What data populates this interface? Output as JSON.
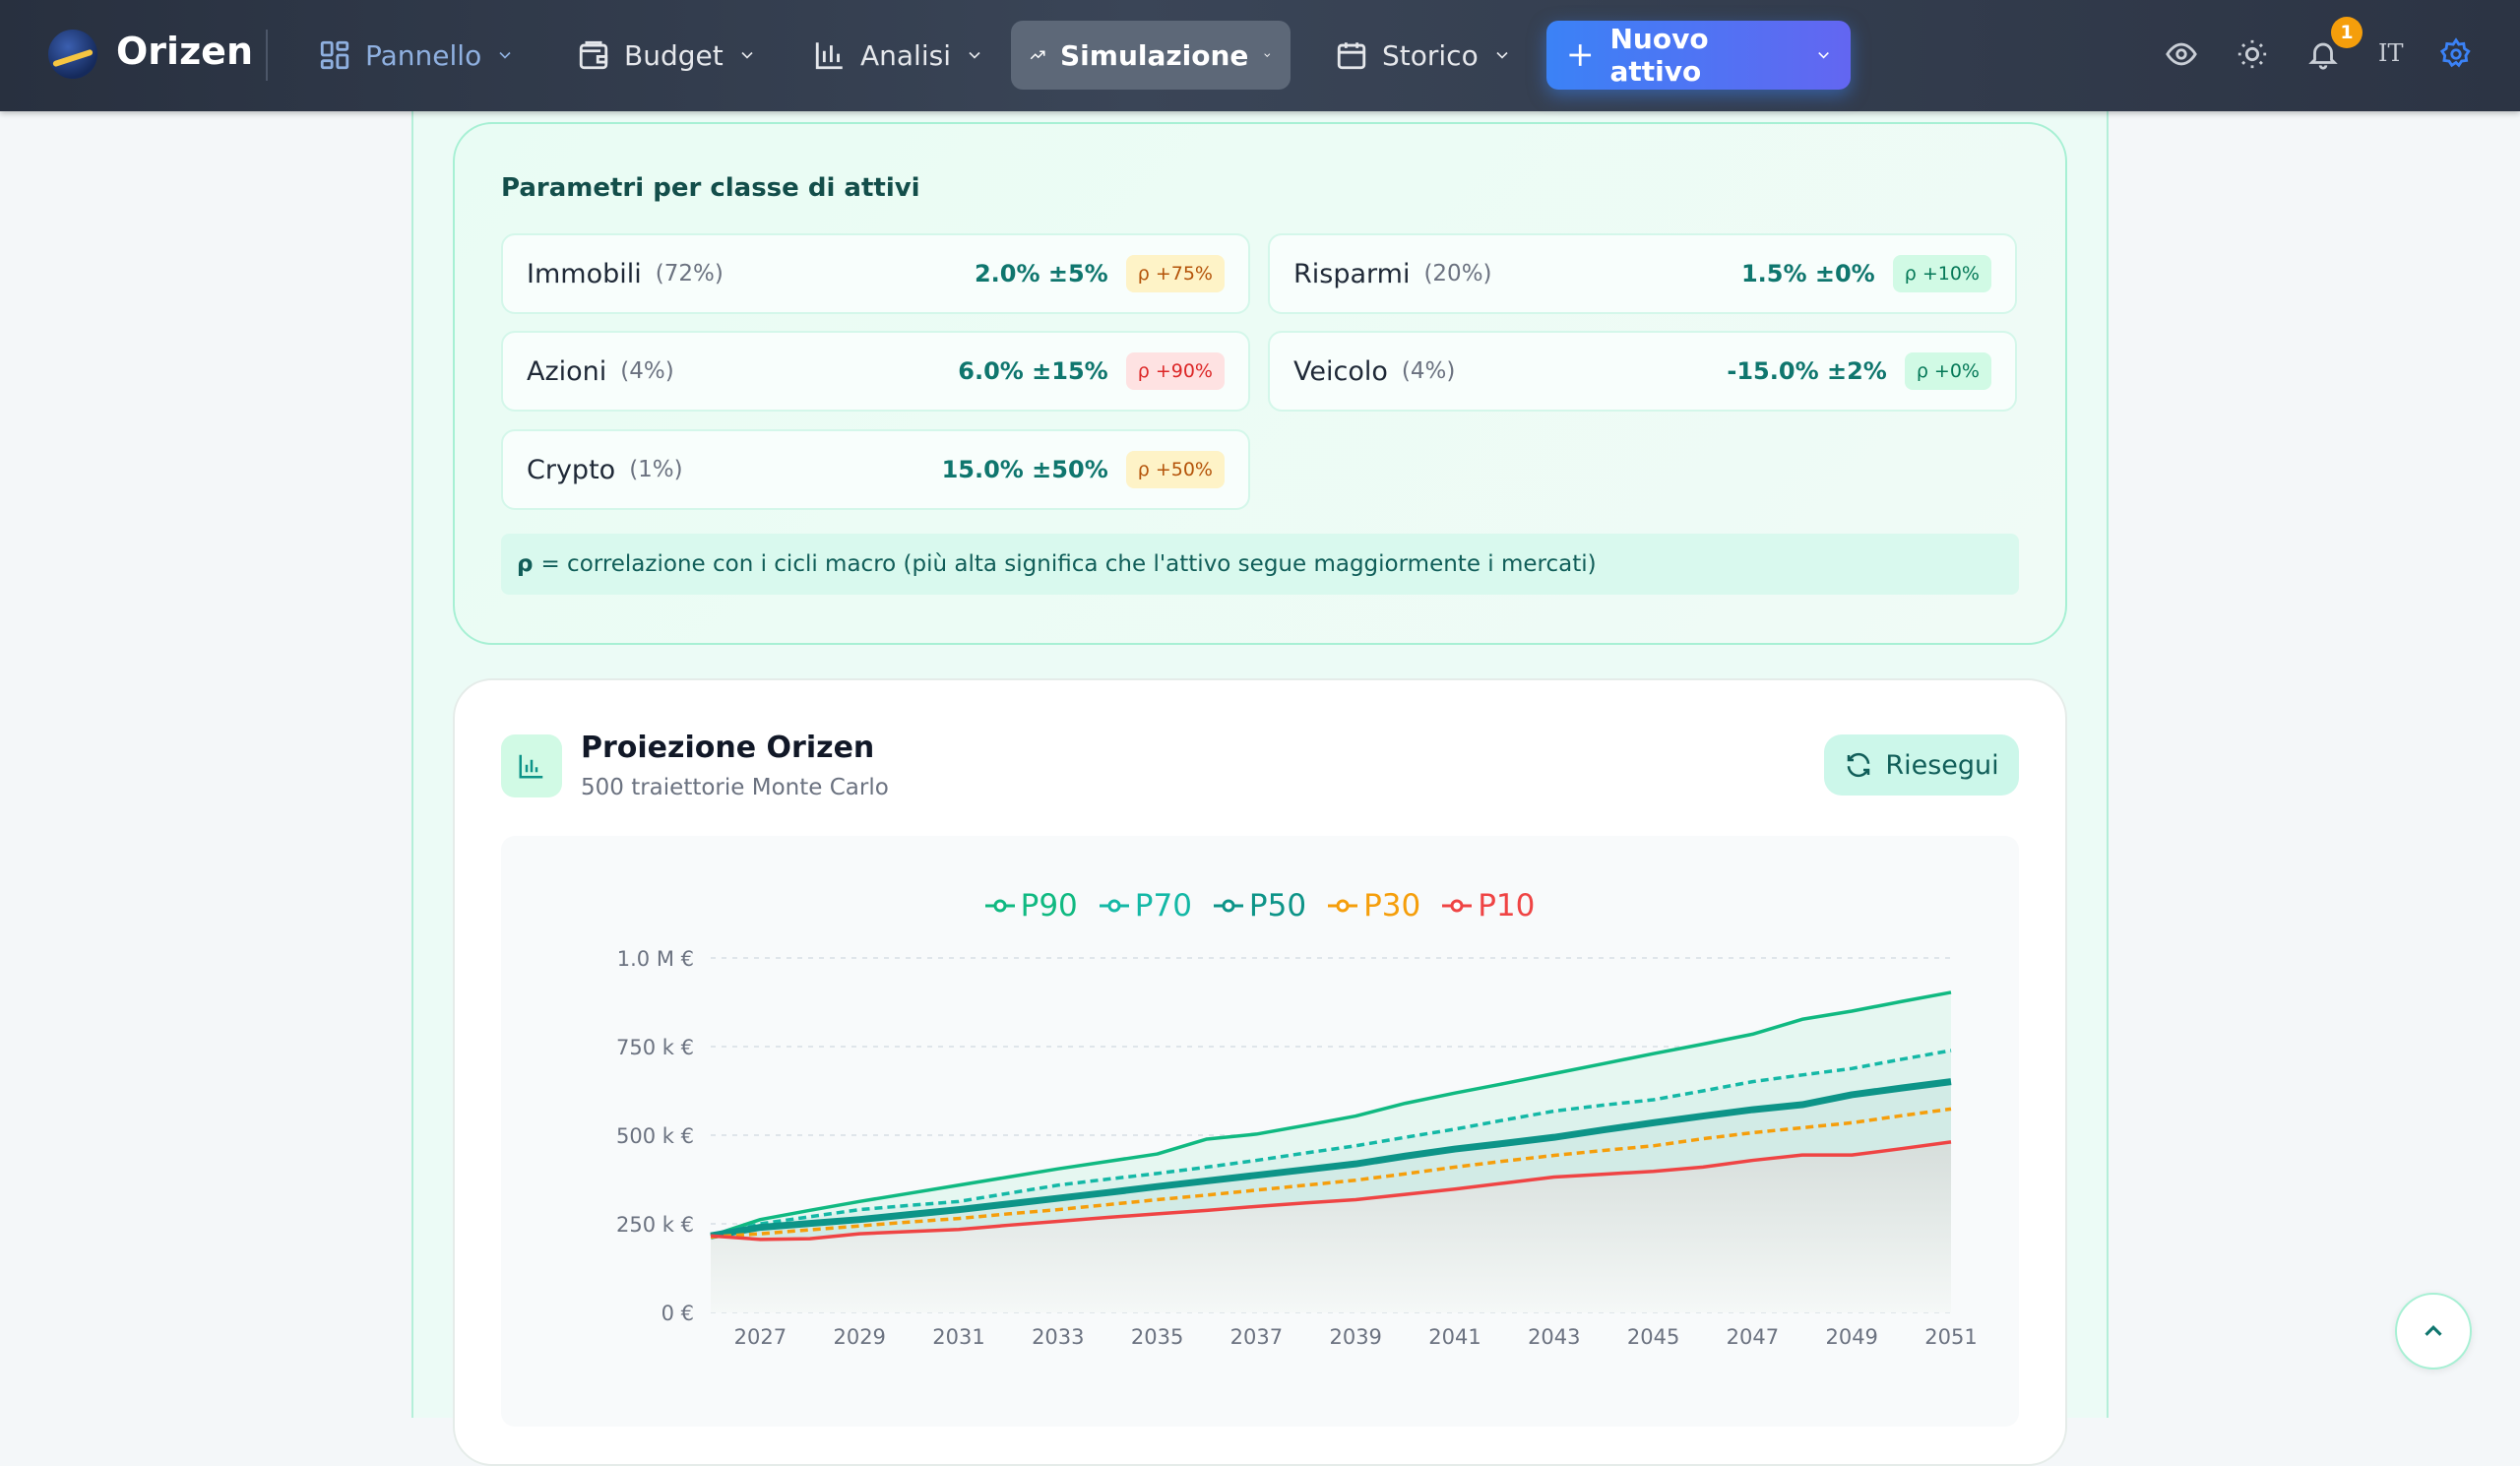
{
  "nav": {
    "brand": "Orizen",
    "items": [
      {
        "label": "Pannello",
        "icon": "grid-icon"
      },
      {
        "label": "Budget",
        "icon": "wallet-icon"
      },
      {
        "label": "Analisi",
        "icon": "bar-chart-icon"
      },
      {
        "label": "Simulazione",
        "icon": "trending-up-icon",
        "active": true
      },
      {
        "label": "Storico",
        "icon": "calendar-icon"
      }
    ],
    "new_asset": "Nuovo attivo",
    "notifications": "1",
    "language": "IT"
  },
  "params": {
    "title": "Parametri per classe di attivi",
    "items": [
      {
        "name": "Immobili",
        "share": "(72%)",
        "value": "2.0% ±5%",
        "rho": "ρ +75%",
        "tone": "amber"
      },
      {
        "name": "Risparmi",
        "share": "(20%)",
        "value": "1.5% ±0%",
        "rho": "ρ +10%",
        "tone": "green"
      },
      {
        "name": "Azioni",
        "share": "(4%)",
        "value": "6.0% ±15%",
        "rho": "ρ +90%",
        "tone": "red"
      },
      {
        "name": "Veicolo",
        "share": "(4%)",
        "value": "-15.0% ±2%",
        "rho": "ρ +0%",
        "tone": "green"
      },
      {
        "name": "Crypto",
        "share": "(1%)",
        "value": "15.0% ±50%",
        "rho": "ρ +50%",
        "tone": "amber"
      }
    ],
    "note_symbol": "ρ",
    "note": "= correlazione con i cicli macro (più alta significa che l'attivo segue maggiormente i mercati)"
  },
  "projection": {
    "title": "Proiezione Orizen",
    "subtitle": "500 traiettorie Monte Carlo",
    "rerun": "Riesegui"
  },
  "chart_data": {
    "type": "line",
    "x": [
      2026,
      2027,
      2028,
      2029,
      2030,
      2031,
      2032,
      2033,
      2034,
      2035,
      2036,
      2037,
      2038,
      2039,
      2040,
      2041,
      2042,
      2043,
      2044,
      2045,
      2046,
      2047,
      2048,
      2049,
      2050,
      2051
    ],
    "xticks": [
      "2027",
      "2029",
      "2031",
      "2033",
      "2035",
      "2037",
      "2039",
      "2041",
      "2043",
      "2045",
      "2047",
      "2049",
      "2051"
    ],
    "yticks": [
      {
        "v": 0,
        "label": "0 €"
      },
      {
        "v": 250000,
        "label": "250 k €"
      },
      {
        "v": 500000,
        "label": "500 k €"
      },
      {
        "v": 750000,
        "label": "750 k €"
      },
      {
        "v": 1000000,
        "label": "1.0 M €"
      }
    ],
    "ylim": [
      0,
      1000000
    ],
    "grid": true,
    "legend": "top-center",
    "series": [
      {
        "name": "P90",
        "color": "#10b981",
        "style": "solid",
        "values": [
          216000,
          262000,
          288000,
          313000,
          336000,
          359000,
          382000,
          405000,
          426000,
          447000,
          489000,
          503000,
          528000,
          554000,
          590000,
          619000,
          646000,
          674000,
          702000,
          730000,
          757000,
          785000,
          827000,
          850000,
          877000,
          903000
        ]
      },
      {
        "name": "P70",
        "color": "#14b8a6",
        "style": "dashed",
        "values": [
          216000,
          250000,
          270000,
          290000,
          302000,
          313000,
          336000,
          359000,
          376000,
          392000,
          410000,
          429000,
          450000,
          470000,
          494000,
          517000,
          543000,
          568000,
          585000,
          600000,
          625000,
          651000,
          670000,
          688000,
          714000,
          739000
        ]
      },
      {
        "name": "P50",
        "color": "#0d9488",
        "style": "bold",
        "values": [
          216000,
          240000,
          251000,
          262000,
          276000,
          290000,
          306000,
          322000,
          338000,
          355000,
          371000,
          387000,
          403000,
          419000,
          441000,
          461000,
          477000,
          494000,
          515000,
          535000,
          554000,
          572000,
          586000,
          614000,
          633000,
          651000
        ]
      },
      {
        "name": "P30",
        "color": "#f59e0b",
        "style": "dashed",
        "values": [
          213000,
          222000,
          233000,
          244000,
          255000,
          265000,
          278000,
          290000,
          304000,
          318000,
          331000,
          345000,
          359000,
          373000,
          391000,
          410000,
          427000,
          443000,
          457000,
          470000,
          490000,
          507000,
          521000,
          535000,
          555000,
          574000
        ]
      },
      {
        "name": "P10",
        "color": "#ef4444",
        "style": "solid",
        "values": [
          216000,
          206000,
          208000,
          222000,
          228000,
          234000,
          246000,
          257000,
          268000,
          278000,
          288000,
          299000,
          309000,
          318000,
          333000,
          348000,
          365000,
          382000,
          390000,
          398000,
          410000,
          429000,
          444000,
          444000,
          462000,
          481000
        ]
      }
    ]
  }
}
